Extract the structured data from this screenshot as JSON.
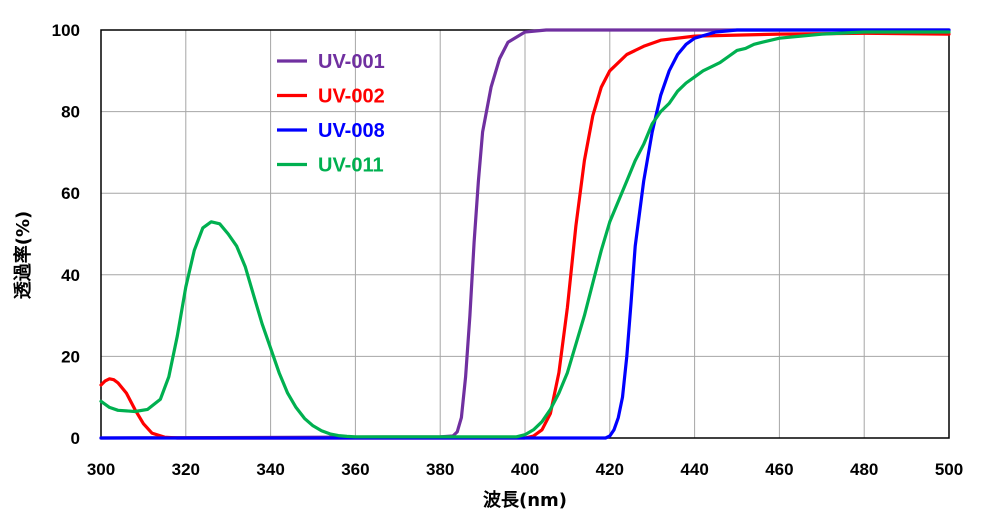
{
  "chart_data": {
    "type": "line",
    "xlabel": "波長(nm)",
    "ylabel": "透過率(%)",
    "xlim": [
      300,
      500
    ],
    "ylim": [
      0,
      100
    ],
    "xticks": [
      300,
      320,
      340,
      360,
      380,
      400,
      420,
      440,
      460,
      480,
      500
    ],
    "yticks": [
      0,
      20,
      40,
      60,
      80,
      100
    ],
    "grid": true,
    "legend_position": "top-left",
    "series": [
      {
        "name": "UV-001",
        "color": "#7030A0",
        "points": [
          [
            300,
            0
          ],
          [
            380,
            0.3
          ],
          [
            383,
            0.5
          ],
          [
            384,
            1.5
          ],
          [
            385,
            5
          ],
          [
            386,
            15
          ],
          [
            387,
            30
          ],
          [
            388,
            48
          ],
          [
            389,
            63
          ],
          [
            390,
            75
          ],
          [
            392,
            86
          ],
          [
            394,
            93
          ],
          [
            396,
            97
          ],
          [
            400,
            99.5
          ],
          [
            405,
            100
          ],
          [
            500,
            100
          ]
        ]
      },
      {
        "name": "UV-002",
        "color": "#FF0000",
        "points": [
          [
            300,
            13
          ],
          [
            301,
            14
          ],
          [
            302,
            14.5
          ],
          [
            303,
            14.3
          ],
          [
            304,
            13.5
          ],
          [
            306,
            11
          ],
          [
            308,
            7
          ],
          [
            310,
            3.5
          ],
          [
            312,
            1.2
          ],
          [
            315,
            0.2
          ],
          [
            318,
            0
          ],
          [
            400,
            0
          ],
          [
            402,
            0.5
          ],
          [
            404,
            2
          ],
          [
            406,
            6
          ],
          [
            408,
            16
          ],
          [
            410,
            32
          ],
          [
            412,
            52
          ],
          [
            414,
            68
          ],
          [
            416,
            79
          ],
          [
            418,
            86
          ],
          [
            420,
            90
          ],
          [
            424,
            94
          ],
          [
            428,
            96
          ],
          [
            432,
            97.5
          ],
          [
            440,
            98.5
          ],
          [
            460,
            99
          ],
          [
            480,
            99.2
          ],
          [
            500,
            99
          ]
        ]
      },
      {
        "name": "UV-008",
        "color": "#0000FF",
        "points": [
          [
            300,
            0
          ],
          [
            419,
            0
          ],
          [
            420,
            0.5
          ],
          [
            421,
            2
          ],
          [
            422,
            5
          ],
          [
            423,
            10
          ],
          [
            424,
            20
          ],
          [
            425,
            33
          ],
          [
            426,
            47
          ],
          [
            428,
            63
          ],
          [
            430,
            75
          ],
          [
            432,
            84
          ],
          [
            434,
            90
          ],
          [
            436,
            94
          ],
          [
            438,
            96.5
          ],
          [
            440,
            98
          ],
          [
            445,
            99.5
          ],
          [
            450,
            100
          ],
          [
            500,
            100
          ]
        ]
      },
      {
        "name": "UV-011",
        "color": "#00B050",
        "points": [
          [
            300,
            9
          ],
          [
            302,
            7.5
          ],
          [
            304,
            6.8
          ],
          [
            308,
            6.5
          ],
          [
            311,
            7
          ],
          [
            314,
            9.5
          ],
          [
            316,
            15
          ],
          [
            318,
            25
          ],
          [
            320,
            37
          ],
          [
            322,
            46
          ],
          [
            324,
            51.5
          ],
          [
            326,
            53
          ],
          [
            328,
            52.5
          ],
          [
            330,
            50
          ],
          [
            332,
            47
          ],
          [
            334,
            42
          ],
          [
            336,
            35
          ],
          [
            338,
            28
          ],
          [
            340,
            22
          ],
          [
            342,
            16
          ],
          [
            344,
            11
          ],
          [
            346,
            7.5
          ],
          [
            348,
            4.8
          ],
          [
            350,
            3
          ],
          [
            352,
            1.8
          ],
          [
            354,
            1
          ],
          [
            356,
            0.6
          ],
          [
            358,
            0.4
          ],
          [
            360,
            0.3
          ],
          [
            398,
            0.3
          ],
          [
            400,
            0.8
          ],
          [
            402,
            2
          ],
          [
            404,
            4
          ],
          [
            406,
            7
          ],
          [
            408,
            11
          ],
          [
            410,
            16
          ],
          [
            412,
            23
          ],
          [
            414,
            30
          ],
          [
            416,
            38
          ],
          [
            418,
            46
          ],
          [
            420,
            53
          ],
          [
            422,
            58
          ],
          [
            424,
            63
          ],
          [
            426,
            68
          ],
          [
            428,
            72
          ],
          [
            430,
            77
          ],
          [
            432,
            80
          ],
          [
            434,
            82
          ],
          [
            436,
            85
          ],
          [
            438,
            87
          ],
          [
            440,
            88.5
          ],
          [
            442,
            90
          ],
          [
            444,
            91
          ],
          [
            446,
            92
          ],
          [
            448,
            93.5
          ],
          [
            450,
            95
          ],
          [
            452,
            95.5
          ],
          [
            454,
            96.5
          ],
          [
            456,
            97
          ],
          [
            458,
            97.5
          ],
          [
            460,
            98
          ],
          [
            465,
            98.5
          ],
          [
            470,
            99
          ],
          [
            480,
            99.5
          ],
          [
            500,
            99.5
          ]
        ]
      }
    ]
  }
}
